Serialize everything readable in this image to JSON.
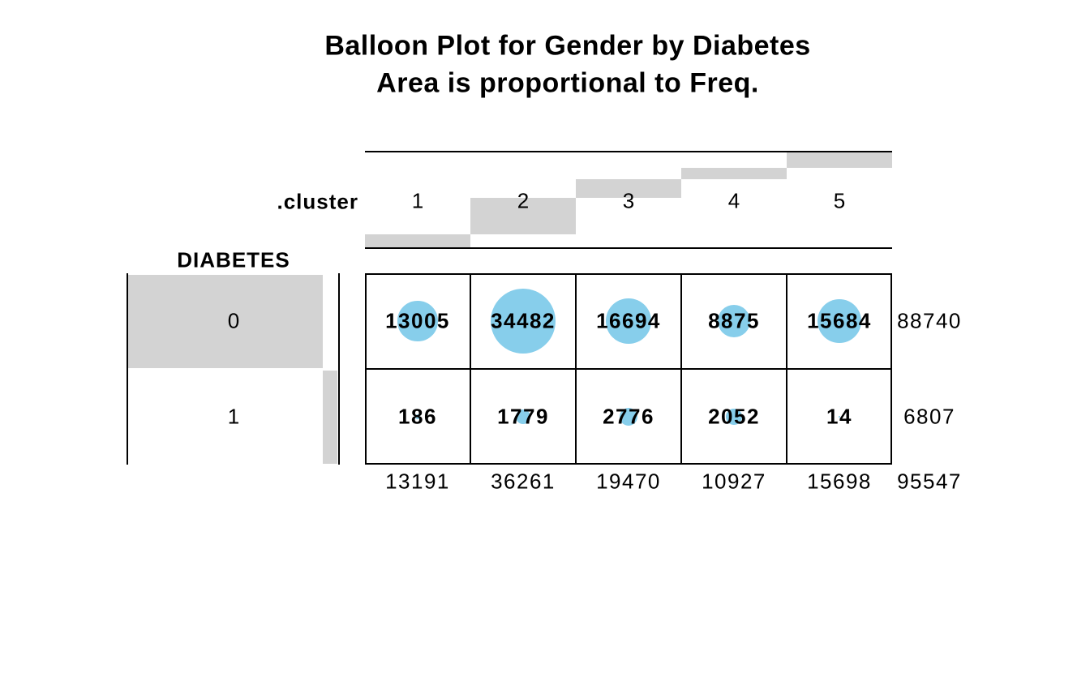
{
  "title": {
    "line1": "Balloon Plot for Gender by Diabetes",
    "line2": "Area is proportional to Freq."
  },
  "chart_data": {
    "type": "table",
    "subtype": "balloon-plot",
    "title": "Balloon Plot for Gender by Diabetes",
    "subtitle": "Area is proportional to Freq.",
    "column_header_label": ".cluster",
    "row_header_label": "DIABETES",
    "columns": [
      "1",
      "2",
      "3",
      "4",
      "5"
    ],
    "rows": [
      "0",
      "1"
    ],
    "values": [
      [
        13005,
        34482,
        16694,
        8875,
        15684
      ],
      [
        186,
        1779,
        2776,
        2052,
        14
      ]
    ],
    "row_sums": [
      88740,
      6807
    ],
    "col_sums": [
      13191,
      36261,
      19470,
      10927,
      15698
    ],
    "total": 95547,
    "balloon_color": "#87CEEB",
    "margin_bar_color": "#D3D3D3",
    "layout_hints": {
      "balloon_area_proportional_to": "Freq",
      "margin_bars": "cumulative share of totals shown as gray staircase bars behind labels",
      "grid": "2x5 black-bordered table, balloons behind bold cell counts"
    }
  }
}
